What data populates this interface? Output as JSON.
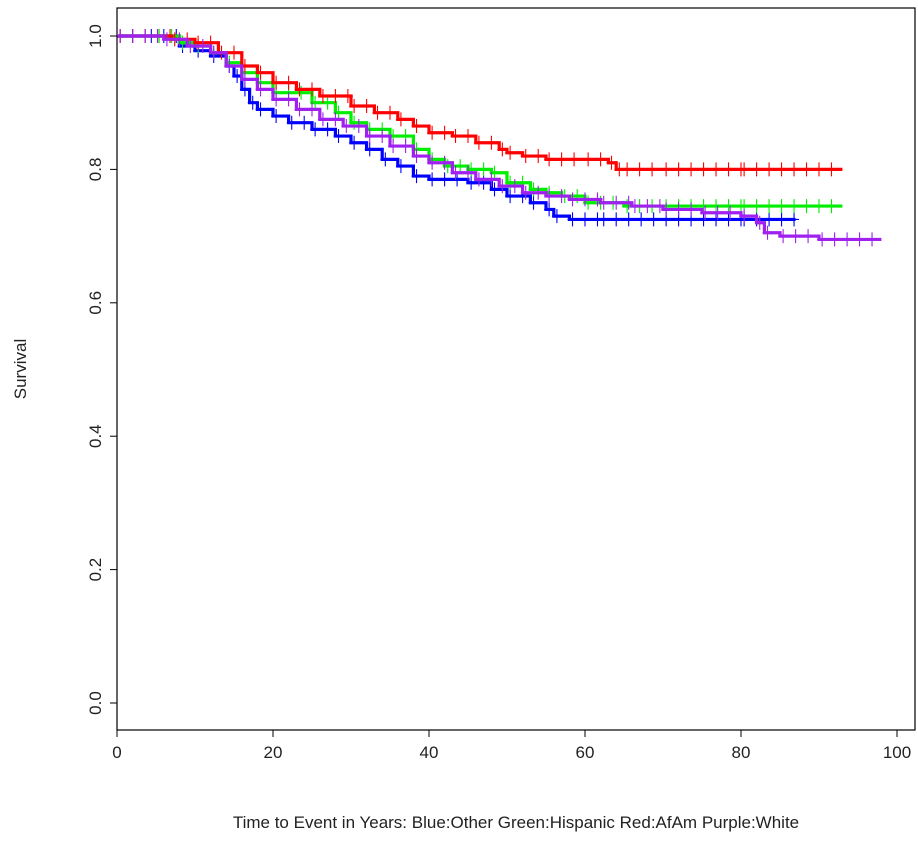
{
  "chart_data": {
    "type": "line",
    "title": "",
    "xlabel": "Time to Event in Years:  Blue:Other   Green:Hispanic   Red:AfAm   Purple:White",
    "ylabel": "Survival",
    "xlim": [
      0,
      100
    ],
    "ylim": [
      -0.04,
      1.04
    ],
    "x_ticks": [
      "0",
      "20",
      "40",
      "60",
      "80",
      "100"
    ],
    "y_ticks": [
      "0.0",
      "0.2",
      "0.4",
      "0.6",
      "0.8",
      "1.0"
    ],
    "grid": false,
    "legend": "none",
    "series": [
      {
        "color": "#0000ff",
        "x": [
          0,
          4,
          8,
          10,
          12,
          14,
          15,
          16,
          17,
          18,
          20,
          22,
          25,
          28,
          30,
          32,
          34,
          36,
          38,
          40,
          45,
          48,
          50,
          53,
          55,
          56,
          58,
          62,
          70,
          80,
          87
        ],
        "y": [
          1.0,
          1.0,
          0.985,
          0.978,
          0.97,
          0.955,
          0.94,
          0.92,
          0.9,
          0.89,
          0.88,
          0.87,
          0.86,
          0.85,
          0.84,
          0.83,
          0.815,
          0.805,
          0.79,
          0.785,
          0.78,
          0.77,
          0.76,
          0.75,
          0.74,
          0.73,
          0.725,
          0.725,
          0.725,
          0.725,
          0.725
        ]
      },
      {
        "color": "#00ee00",
        "x": [
          0,
          5,
          8,
          10,
          12,
          14,
          16,
          18,
          20,
          25,
          28,
          30,
          32,
          35,
          38,
          40,
          42,
          45,
          48,
          50,
          53,
          55,
          57,
          60,
          65,
          70,
          80,
          93
        ],
        "y": [
          1.0,
          1.0,
          0.99,
          0.985,
          0.975,
          0.96,
          0.945,
          0.93,
          0.915,
          0.9,
          0.885,
          0.87,
          0.86,
          0.85,
          0.83,
          0.815,
          0.805,
          0.8,
          0.795,
          0.78,
          0.77,
          0.765,
          0.76,
          0.75,
          0.745,
          0.745,
          0.745,
          0.745
        ]
      },
      {
        "color": "#ff0000",
        "x": [
          0,
          7,
          10,
          13,
          16,
          18,
          20,
          23,
          26,
          30,
          33,
          36,
          38,
          40,
          43,
          46,
          49,
          50,
          52,
          55,
          60,
          63,
          64,
          65,
          70,
          80,
          93
        ],
        "y": [
          1.0,
          0.995,
          0.99,
          0.975,
          0.955,
          0.945,
          0.93,
          0.92,
          0.91,
          0.895,
          0.885,
          0.875,
          0.865,
          0.855,
          0.85,
          0.84,
          0.83,
          0.825,
          0.82,
          0.815,
          0.815,
          0.81,
          0.8,
          0.8,
          0.8,
          0.8,
          0.8
        ]
      },
      {
        "color": "#a020f0",
        "x": [
          0,
          6,
          9,
          12,
          14,
          16,
          18,
          20,
          23,
          26,
          29,
          32,
          35,
          38,
          40,
          43,
          46,
          49,
          52,
          55,
          58,
          62,
          66,
          70,
          75,
          80,
          82,
          83,
          85,
          90,
          98
        ],
        "y": [
          1.0,
          0.995,
          0.985,
          0.975,
          0.955,
          0.935,
          0.92,
          0.905,
          0.89,
          0.875,
          0.865,
          0.85,
          0.835,
          0.82,
          0.81,
          0.795,
          0.785,
          0.775,
          0.765,
          0.76,
          0.755,
          0.75,
          0.745,
          0.74,
          0.735,
          0.73,
          0.72,
          0.705,
          0.7,
          0.695,
          0.695
        ]
      }
    ]
  }
}
